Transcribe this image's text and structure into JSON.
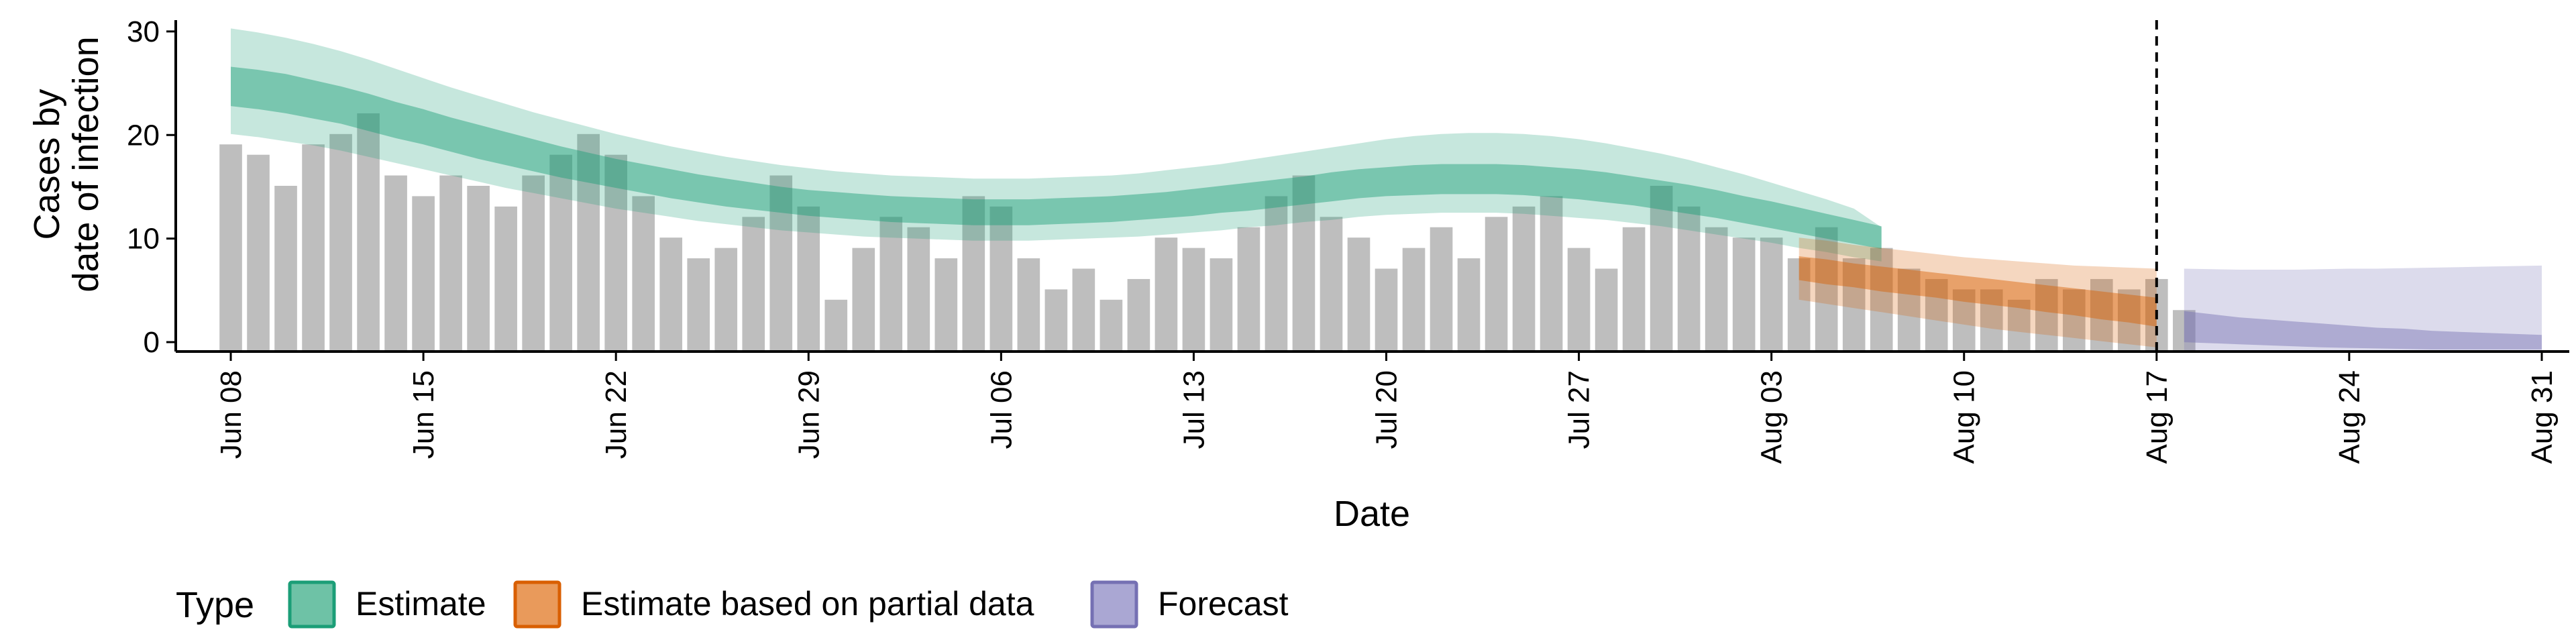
{
  "chart_data": {
    "type": "bar",
    "xlabel": "Date",
    "ylabel_lines": [
      "Cases by",
      "date of infection"
    ],
    "ylim": [
      0,
      32
    ],
    "yticks": [
      0,
      10,
      20,
      30
    ],
    "x_date_range": [
      "2020-06-06",
      "2020-09-01"
    ],
    "xticks": [
      {
        "date": "2020-06-08",
        "label": "Jun 08"
      },
      {
        "date": "2020-06-15",
        "label": "Jun 15"
      },
      {
        "date": "2020-06-22",
        "label": "Jun 22"
      },
      {
        "date": "2020-06-29",
        "label": "Jun 29"
      },
      {
        "date": "2020-07-06",
        "label": "Jul 06"
      },
      {
        "date": "2020-07-13",
        "label": "Jul 13"
      },
      {
        "date": "2020-07-20",
        "label": "Jul 20"
      },
      {
        "date": "2020-07-27",
        "label": "Jul 27"
      },
      {
        "date": "2020-08-03",
        "label": "Aug 03"
      },
      {
        "date": "2020-08-10",
        "label": "Aug 10"
      },
      {
        "date": "2020-08-17",
        "label": "Aug 17"
      },
      {
        "date": "2020-08-24",
        "label": "Aug 24"
      },
      {
        "date": "2020-08-31",
        "label": "Aug 31"
      }
    ],
    "grid": false,
    "reported_cases": {
      "start_date": "2020-06-08",
      "values": [
        20,
        19,
        16,
        20,
        21,
        23,
        17,
        15,
        17,
        16,
        14,
        17,
        19,
        21,
        19,
        15,
        11,
        9,
        10,
        13,
        17,
        14,
        5,
        10,
        13,
        12,
        9,
        15,
        14,
        9,
        6,
        8,
        5,
        7,
        11,
        10,
        9,
        12,
        15,
        17,
        13,
        11,
        8,
        10,
        12,
        9,
        13,
        14,
        15,
        10,
        8,
        12,
        16,
        14,
        12,
        11,
        11,
        9,
        12,
        9,
        10,
        8,
        7,
        6,
        6,
        5,
        7,
        6,
        7,
        6,
        7,
        4
      ],
      "color": "#bebebe"
    },
    "series": [
      {
        "name": "Estimate",
        "color": "#1b9e77",
        "start_date": "2020-06-08",
        "median": [
          25.5,
          25.2,
          24.8,
          24.3,
          23.7,
          23.0,
          22.3,
          21.6,
          20.9,
          20.2,
          19.5,
          18.9,
          18.3,
          17.7,
          17.2,
          16.7,
          16.2,
          15.8,
          15.4,
          15.0,
          14.7,
          14.4,
          14.2,
          14.0,
          13.8,
          13.7,
          13.6,
          13.5,
          13.5,
          13.5,
          13.6,
          13.7,
          13.8,
          14.0,
          14.2,
          14.4,
          14.7,
          15.0,
          15.3,
          15.6,
          15.9,
          16.2,
          16.4,
          16.5,
          16.6,
          16.6,
          16.6,
          16.5,
          16.3,
          16.1,
          15.8,
          15.5,
          15.1,
          14.7,
          14.2,
          13.7,
          13.2,
          12.6,
          12.1,
          11.5,
          11.0
        ],
        "inner": {
          "lower": [
            23.7,
            23.4,
            23.0,
            22.5,
            22.0,
            21.3,
            20.6,
            20.0,
            19.3,
            18.6,
            18.0,
            17.4,
            16.8,
            16.3,
            15.8,
            15.3,
            14.8,
            14.4,
            14.0,
            13.7,
            13.4,
            13.1,
            12.9,
            12.7,
            12.5,
            12.4,
            12.3,
            12.2,
            12.2,
            12.2,
            12.3,
            12.4,
            12.5,
            12.7,
            12.9,
            13.1,
            13.4,
            13.6,
            13.9,
            14.2,
            14.5,
            14.8,
            15.0,
            15.1,
            15.2,
            15.2,
            15.2,
            15.1,
            14.9,
            14.7,
            14.4,
            14.1,
            13.7,
            13.3,
            12.9,
            12.4,
            11.9,
            11.4,
            10.9,
            10.4,
            9.9
          ],
          "upper": [
            27.5,
            27.2,
            26.8,
            26.2,
            25.6,
            24.9,
            24.1,
            23.4,
            22.6,
            21.9,
            21.2,
            20.5,
            19.8,
            19.2,
            18.6,
            18.1,
            17.6,
            17.1,
            16.7,
            16.3,
            15.9,
            15.6,
            15.4,
            15.2,
            15.0,
            14.9,
            14.8,
            14.7,
            14.7,
            14.7,
            14.8,
            14.9,
            15.0,
            15.2,
            15.4,
            15.7,
            16.0,
            16.3,
            16.6,
            16.9,
            17.3,
            17.6,
            17.8,
            18.0,
            18.1,
            18.1,
            18.1,
            18.0,
            17.8,
            17.6,
            17.3,
            16.9,
            16.5,
            16.1,
            15.6,
            15.0,
            14.5,
            13.9,
            13.3,
            12.7,
            12.1
          ]
        },
        "outer": {
          "lower": [
            21.0,
            20.7,
            20.3,
            19.9,
            19.4,
            18.8,
            18.2,
            17.6,
            17.0,
            16.4,
            15.8,
            15.3,
            14.8,
            14.3,
            13.8,
            13.4,
            13.0,
            12.6,
            12.3,
            12.0,
            11.7,
            11.5,
            11.3,
            11.1,
            11.0,
            10.9,
            10.8,
            10.7,
            10.7,
            10.7,
            10.8,
            10.9,
            11.0,
            11.1,
            11.3,
            11.5,
            11.7,
            12.0,
            12.2,
            12.5,
            12.7,
            13.0,
            13.2,
            13.3,
            13.4,
            13.4,
            13.4,
            13.3,
            13.1,
            12.9,
            12.7,
            12.4,
            12.1,
            11.7,
            11.3,
            10.9,
            10.5,
            10.0,
            9.6,
            9.1,
            8.7
          ],
          "upper": [
            31.2,
            30.8,
            30.3,
            29.7,
            29.0,
            28.2,
            27.3,
            26.4,
            25.5,
            24.7,
            23.9,
            23.1,
            22.4,
            21.7,
            21.0,
            20.4,
            19.8,
            19.3,
            18.8,
            18.4,
            18.0,
            17.7,
            17.4,
            17.2,
            17.0,
            16.9,
            16.8,
            16.7,
            16.7,
            16.7,
            16.8,
            16.9,
            17.0,
            17.2,
            17.5,
            17.8,
            18.1,
            18.5,
            18.9,
            19.3,
            19.7,
            20.1,
            20.5,
            20.8,
            21.0,
            21.1,
            21.1,
            21.0,
            20.8,
            20.5,
            20.1,
            19.6,
            19.1,
            18.5,
            17.8,
            17.1,
            16.3,
            15.5,
            14.7,
            13.8,
            12.0
          ]
        }
      },
      {
        "name": "Estimate based on partial data",
        "color": "#d95f02",
        "start_date": "2020-08-04",
        "median": [
          7.8,
          7.4,
          7.1,
          6.8,
          6.5,
          6.2,
          5.9,
          5.6,
          5.3,
          5.0,
          4.7,
          4.4,
          4.1,
          3.8
        ],
        "inner": {
          "lower": [
            6.9,
            6.5,
            6.2,
            5.8,
            5.5,
            5.2,
            4.8,
            4.5,
            4.2,
            3.8,
            3.5,
            3.1,
            2.8,
            2.4
          ],
          "upper": [
            9.2,
            8.9,
            8.5,
            8.2,
            7.9,
            7.6,
            7.3,
            7.0,
            6.7,
            6.4,
            6.1,
            5.8,
            5.5,
            5.2
          ]
        },
        "outer": {
          "lower": [
            5.0,
            4.6,
            4.2,
            3.8,
            3.4,
            3.0,
            2.6,
            2.2,
            1.9,
            1.6,
            1.3,
            1.0,
            0.7,
            0.4
          ],
          "upper": [
            11.0,
            10.7,
            10.3,
            10.0,
            9.7,
            9.4,
            9.1,
            8.9,
            8.7,
            8.5,
            8.3,
            8.2,
            8.1,
            8.0
          ]
        }
      },
      {
        "name": "Forecast",
        "color": "#7570b3",
        "start_date": "2020-08-18",
        "median": [
          2.3,
          2.2,
          2.1,
          2.0,
          1.9,
          1.8,
          1.7,
          1.6,
          1.5,
          1.4,
          1.35,
          1.3,
          1.25,
          1.2
        ],
        "inner": {
          "lower": [
            0.9,
            0.8,
            0.7,
            0.6,
            0.5,
            0.4,
            0.35,
            0.3,
            0.25,
            0.2,
            0.2,
            0.2,
            0.2,
            0.2
          ],
          "upper": [
            3.9,
            3.6,
            3.3,
            3.1,
            2.9,
            2.7,
            2.5,
            2.3,
            2.2,
            2.0,
            1.9,
            1.8,
            1.7,
            1.6
          ]
        },
        "outer": {
          "lower": [
            0.0,
            0.0,
            0.0,
            0.0,
            0.0,
            0.0,
            0.0,
            0.0,
            0.0,
            0.0,
            0.0,
            0.0,
            0.0,
            0.0
          ],
          "upper": [
            8.0,
            7.95,
            7.9,
            7.9,
            7.9,
            7.95,
            8.0,
            8.0,
            8.05,
            8.1,
            8.15,
            8.2,
            8.25,
            8.3
          ]
        }
      }
    ],
    "vline": {
      "date": "2020-08-17",
      "style": "dashed"
    },
    "legend": {
      "title": "Type",
      "position": "bottom-left",
      "items": [
        "Estimate",
        "Estimate based on partial data",
        "Forecast"
      ]
    }
  }
}
